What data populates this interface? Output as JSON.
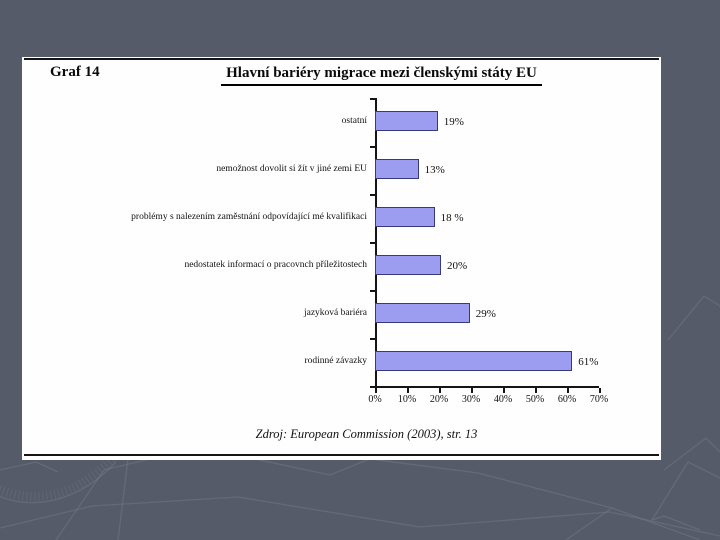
{
  "slide": {
    "graf_label": "Graf 14",
    "title": "Hlavní bariéry migrace mezi členskými státy EU",
    "source": "Zdroj: European Commission (2003), str. 13"
  },
  "colors": {
    "background": "#565b69",
    "panel": "#fefefe",
    "bar_fill": "#9c9cf0",
    "bar_border": "#3a3a7a",
    "axis": "#151515",
    "pattern_line": "#737988"
  },
  "chart_data": {
    "type": "bar",
    "orientation": "horizontal",
    "title": "Hlavní bariéry migrace mezi členskými státy EU",
    "categories": [
      "ostatní",
      "nemožnost dovolit si žít v jiné zemi EU",
      "problémy s nalezením zaměstnání odpovídající mé kvalifikaci",
      "nedostatek informací o pracovnch příležitostech",
      "jazyková bariéra",
      "rodinné závazky"
    ],
    "values": [
      19,
      13,
      18,
      20,
      29,
      61
    ],
    "value_labels": [
      "19%",
      "13%",
      "18 %",
      "20%",
      "29%",
      "61%"
    ],
    "xlabel": "",
    "ylabel": "",
    "xlim": [
      0,
      70
    ],
    "x_tick_labels": [
      "0%",
      "10%",
      "20%",
      "30%",
      "40%",
      "50%",
      "60%",
      "70%"
    ],
    "grid": false,
    "legend": false,
    "source_note": "Zdroj: European Commission (2003), str. 13"
  }
}
